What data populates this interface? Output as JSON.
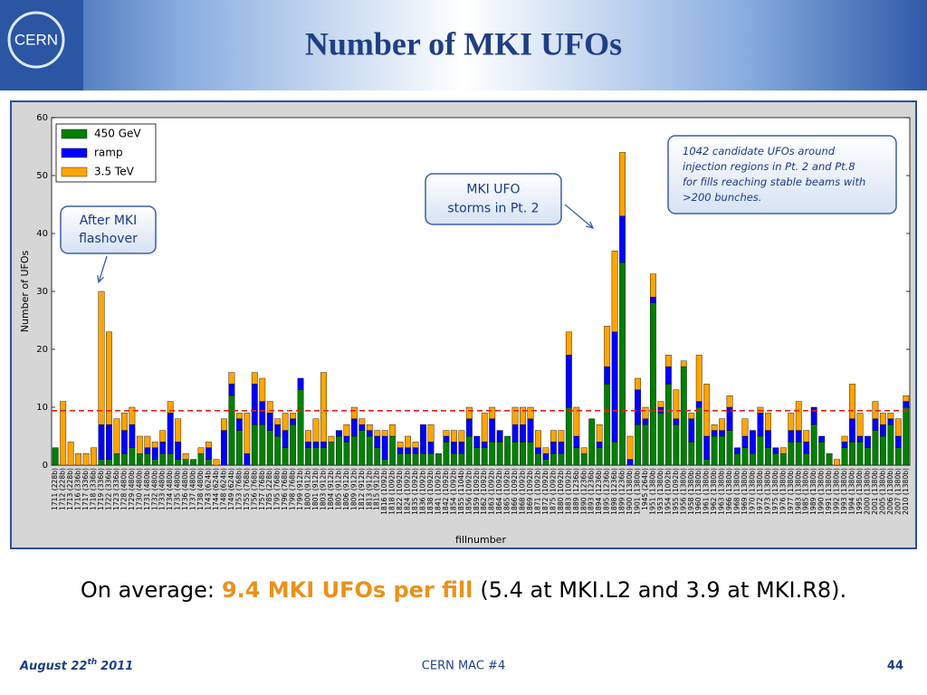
{
  "header": {
    "logo": "CERN",
    "title": "Number of MKI UFOs"
  },
  "chart_data": {
    "type": "stacked_bar",
    "ylabel": "Number of UFOs",
    "xlabel": "fillnumber",
    "ylim": [
      0,
      60
    ],
    "yticks": [
      0,
      10,
      20,
      30,
      40,
      50,
      60
    ],
    "legend": "upper left",
    "reference_line": {
      "value": 9.4,
      "color": "#e8201a"
    },
    "categories": [
      "1711 (228b)",
      "1712 (228b)",
      "1713 (228b)",
      "1716 (336b)",
      "1717 (336b)",
      "1718 (336b)",
      "1719 (336b)",
      "1722 (336b)",
      "1723 (336b)",
      "1728 (480b)",
      "1729 (480b)",
      "1730 (480b)",
      "1731 (480b)",
      "1732 (480b)",
      "1733 (480b)",
      "1734 (480b)",
      "1735 (480b)",
      "1736 (480b)",
      "1737 (480b)",
      "1738 (480b)",
      "1743 (624b)",
      "1744 (624b)",
      "1748 (624b)",
      "1749 (624b)",
      "1753 (768b)",
      "1755 (768b)",
      "1756 (768b)",
      "1757 (768b)",
      "1785 (228b)",
      "1795 (768b)",
      "1796 (768b)",
      "1798 (768b)",
      "1799 (912b)",
      "1800 (912b)",
      "1801 (912b)",
      "1803 (912b)",
      "1804 (912b)",
      "1805 (912b)",
      "1806 (912b)",
      "1809 (912b)",
      "1812 (912b)",
      "1813 (912b)",
      "1815 (912b)",
      "1816 (1092b)",
      "1818 (1092b)",
      "1822 (1092b)",
      "1824 (1092b)",
      "1835 (1092b)",
      "1836 (1092b)",
      "1838 (1092b)",
      "1841 (1092b)",
      "1842 (1092b)",
      "1854 (1092b)",
      "1855 (1104b)",
      "1856 (1092b)",
      "1859 (1092b)",
      "1862 (1092b)",
      "1863 (1092b)",
      "1864 (1092b)",
      "1865 (1092b)",
      "1866 (1092b)",
      "1868 (1092b)",
      "1869 (1092b)",
      "1871 (1092b)",
      "1872 (1092b)",
      "1875 (1092b)",
      "1880 (1092b)",
      "1883 (1092b)",
      "1889 (1236b)",
      "1890 (1236b)",
      "1893 (1236b)",
      "1894 (1236b)",
      "1895 (1236b)",
      "1898 (1236b)",
      "1899 (1236b)",
      "1900 (1380b)",
      "1901 (1380b)",
      "1945 (264b)",
      "1951 (1380b)",
      "1953 (1380b)",
      "1954 (1092b)",
      "1955 (1092b)",
      "1956 (1380b)",
      "1958 (1380b)",
      "1960 (1380b)",
      "1961 (1380b)",
      "1962 (1380b)",
      "1963 (1380b)",
      "1966 (1380b)",
      "1968 (1380b)",
      "1969 (1380b)",
      "1970 (1380b)",
      "1972 (1380b)",
      "1973 (1380b)",
      "1975 (1380b)",
      "1976 (1380b)",
      "1977 (1380b)",
      "1983 (1380b)",
      "1985 (1380b)",
      "1989 (1380b)",
      "1990 (1380b)",
      "1991 (1380b)",
      "1992 (1380b)",
      "1993 (1380b)",
      "1994 (1380b)",
      "1995 (1380b)",
      "2000 (1380b)",
      "2001 (1380b)",
      "2005 (1380b)",
      "2006 (1380b)",
      "2007 (1380b)",
      "2010 (1380b)"
    ],
    "series": [
      {
        "name": "450 GeV",
        "color": "#008000",
        "values": [
          3,
          0,
          0,
          0,
          0,
          0,
          1,
          1,
          2,
          2,
          3,
          2,
          2,
          1,
          2,
          2,
          1,
          1,
          1,
          2,
          1,
          0,
          0,
          12,
          6,
          0,
          7,
          7,
          6,
          5,
          3,
          7,
          13,
          3,
          3,
          3,
          4,
          5,
          4,
          5,
          6,
          5,
          3,
          1,
          5,
          2,
          2,
          2,
          2,
          2,
          2,
          4,
          2,
          2,
          5,
          3,
          3,
          4,
          4,
          5,
          4,
          4,
          4,
          2,
          1,
          2,
          2,
          10,
          3,
          2,
          8,
          3,
          14,
          4,
          35,
          0,
          7,
          7,
          28,
          9,
          14,
          7,
          17,
          4,
          10,
          1,
          5,
          5,
          6,
          2,
          3,
          2,
          5,
          3,
          2,
          2,
          4,
          4,
          2,
          7,
          4,
          2,
          0,
          3,
          4,
          4,
          3,
          6,
          5,
          7,
          3,
          10
        ]
      },
      {
        "name": "ramp",
        "color": "#0000ff",
        "values": [
          0,
          0,
          0,
          0,
          0,
          0,
          6,
          6,
          0,
          4,
          4,
          0,
          1,
          2,
          2,
          7,
          3,
          0,
          0,
          0,
          2,
          0,
          6,
          2,
          2,
          2,
          7,
          4,
          3,
          2,
          3,
          1,
          2,
          1,
          1,
          1,
          0,
          1,
          1,
          3,
          1,
          1,
          2,
          4,
          0,
          1,
          1,
          1,
          5,
          2,
          0,
          1,
          2,
          2,
          3,
          2,
          1,
          4,
          2,
          0,
          3,
          3,
          4,
          1,
          1,
          2,
          2,
          9,
          2,
          0,
          0,
          1,
          3,
          19,
          8,
          1,
          6,
          1,
          1,
          1,
          3,
          1,
          0,
          4,
          1,
          4,
          1,
          1,
          4,
          1,
          2,
          4,
          4,
          3,
          1,
          0,
          2,
          2,
          2,
          3,
          1,
          0,
          0,
          1,
          4,
          1,
          2,
          2,
          2,
          1,
          2,
          1
        ]
      },
      {
        "name": "3.5 TeV",
        "color": "#ffa500",
        "values": [
          0,
          11,
          4,
          2,
          2,
          3,
          23,
          16,
          6,
          3,
          3,
          3,
          2,
          1,
          2,
          2,
          4,
          1,
          0,
          1,
          1,
          1,
          2,
          2,
          1,
          7,
          2,
          4,
          2,
          1,
          3,
          1,
          0,
          2,
          4,
          12,
          1,
          0,
          2,
          2,
          1,
          1,
          1,
          1,
          2,
          1,
          2,
          1,
          0,
          3,
          0,
          1,
          2,
          2,
          2,
          0,
          5,
          2,
          0,
          0,
          3,
          3,
          2,
          3,
          1,
          2,
          2,
          4,
          5,
          1,
          0,
          3,
          7,
          14,
          11,
          4,
          2,
          2,
          4,
          1,
          2,
          5,
          1,
          1,
          8,
          9,
          1,
          2,
          2,
          0,
          3,
          0,
          1,
          3,
          0,
          1,
          3,
          5,
          2,
          0,
          0,
          0,
          1,
          1,
          6,
          4,
          0,
          3,
          2,
          1,
          3,
          1
        ]
      }
    ],
    "annotations": [
      {
        "lines": [
          "After MKI",
          "flashover"
        ]
      },
      {
        "lines": [
          "MKI UFO",
          "storms in Pt. 2"
        ]
      },
      {
        "lines": [
          "1042 candidate UFOs around",
          "injection regions in Pt. 2 and Pt.8",
          "for fills reaching stable beams with",
          ">200 bunches."
        ]
      }
    ]
  },
  "summary": {
    "lead": "On average:",
    "highlight": "9.4 MKI UFOs per fill",
    "detail": "(5.4 at MKI.L2 and 3.9 at MKI.R8)."
  },
  "footer": {
    "date": "August 22",
    "date_sup": "th",
    "year": "2011",
    "event": "CERN MAC #4",
    "page": "44"
  }
}
